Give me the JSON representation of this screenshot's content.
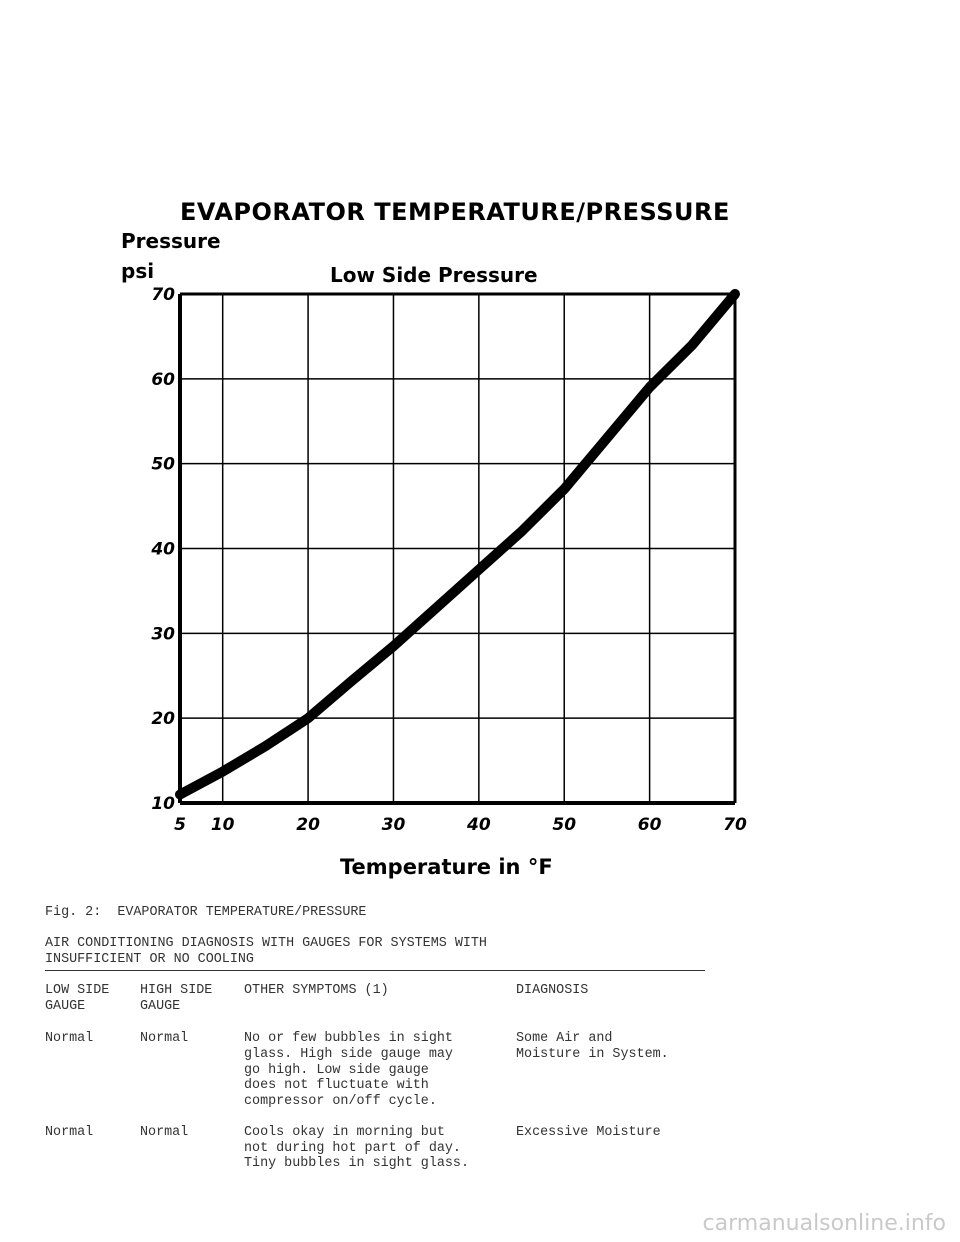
{
  "chart_data": {
    "type": "line",
    "title": "EVAPORATOR TEMPERATURE/PRESSURE",
    "subtitle": "Low Side Pressure",
    "ylabel_lines": [
      "Pressure",
      "psi"
    ],
    "xlabel": "Temperature in °F",
    "x_ticks": [
      "5",
      "10",
      "20",
      "30",
      "40",
      "50",
      "60",
      "70"
    ],
    "y_ticks": [
      "10",
      "20",
      "30",
      "40",
      "50",
      "60",
      "70"
    ],
    "xlim": [
      5,
      70
    ],
    "ylim": [
      10,
      70
    ],
    "grid": true,
    "series": [
      {
        "x": [
          5,
          10,
          15,
          20,
          25,
          30,
          35,
          40,
          45,
          50,
          55,
          60,
          65,
          70
        ],
        "y": [
          11,
          13.7,
          16.7,
          20,
          24.3,
          28.5,
          33,
          37.5,
          42,
          47,
          53,
          59,
          64,
          70
        ]
      }
    ]
  },
  "document": {
    "caption": "Fig. 2:  EVAPORATOR TEMPERATURE/PRESSURE",
    "heading_line1": "AIR CONDITIONING DIAGNOSIS WITH GAUGES FOR SYSTEMS WITH",
    "heading_line2": "INSUFFICIENT OR NO COOLING",
    "table": {
      "headers": {
        "col1_line1": "LOW SIDE",
        "col1_line2": "GAUGE",
        "col2_line1": "HIGH SIDE",
        "col2_line2": "GAUGE",
        "col3": "OTHER SYMPTOMS (1)",
        "col4": "DIAGNOSIS"
      },
      "rows": [
        {
          "low": "Normal",
          "high": "Normal",
          "symptoms": [
            "No or few bubbles in sight",
            "glass. High side gauge may",
            "go high. Low side gauge",
            "does not fluctuate with",
            "compressor on/off cycle."
          ],
          "diagnosis": [
            "Some Air and",
            "Moisture in System."
          ]
        },
        {
          "low": "Normal",
          "high": "Normal",
          "symptoms": [
            "Cools okay in morning but",
            "not during hot part of day.",
            "Tiny bubbles in sight glass."
          ],
          "diagnosis": [
            "Excessive Moisture"
          ]
        }
      ]
    }
  },
  "watermark": "carmanualsonline.info"
}
